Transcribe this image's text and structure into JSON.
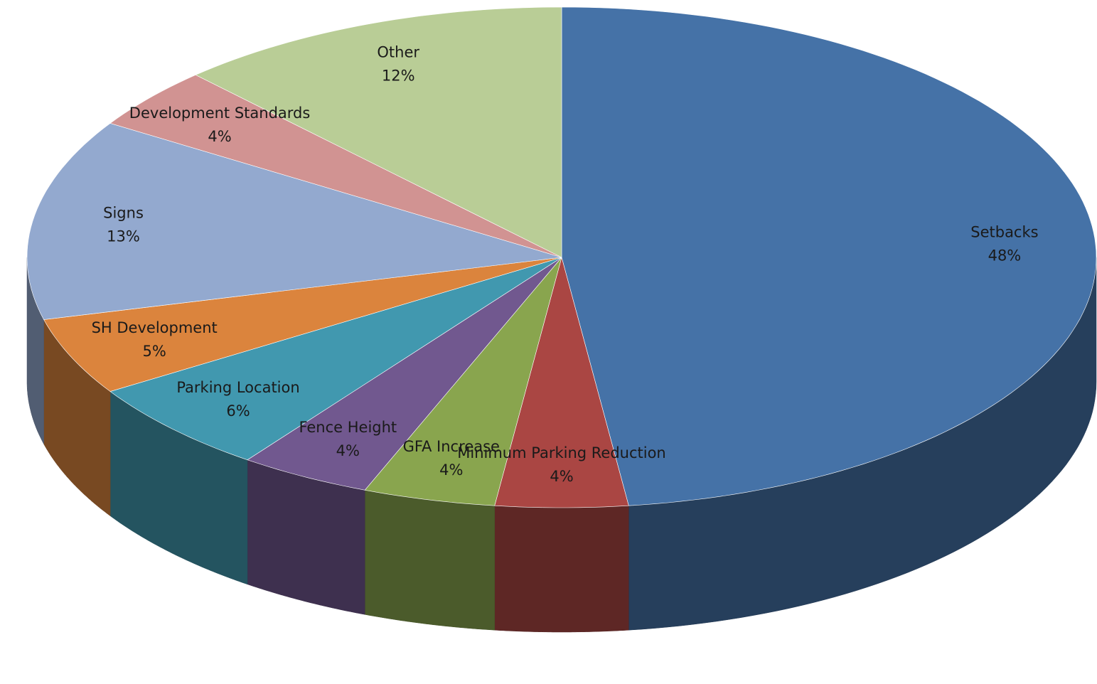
{
  "chart_data": {
    "type": "pie3d",
    "categories": [
      "Setbacks",
      "Minimum Parking Reduction",
      "GFA Increase",
      "Fence Height",
      "Parking Location",
      "SH Development",
      "Signs",
      "Development Standards",
      "Other"
    ],
    "values": [
      48,
      4,
      4,
      4,
      6,
      5,
      13,
      4,
      12
    ],
    "value_labels": [
      "48%",
      "4%",
      "4%",
      "4%",
      "6%",
      "5%",
      "13%",
      "4%",
      "12%"
    ],
    "colors": [
      "#4572a7",
      "#aa4643",
      "#89a54e",
      "#71588f",
      "#4198af",
      "#db843d",
      "#93a9cf",
      "#d19392",
      "#b9cd96"
    ]
  }
}
